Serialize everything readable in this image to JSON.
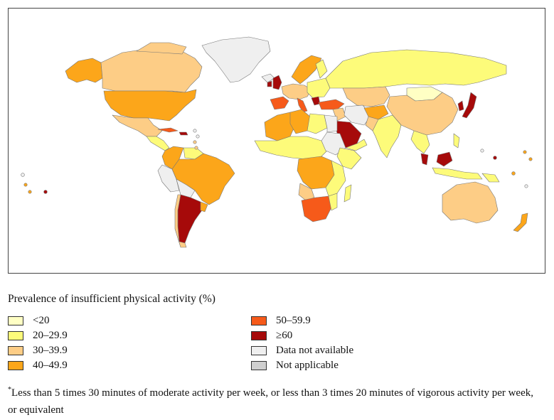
{
  "legend": {
    "title": "Prevalence of insufficient physical activity (%)",
    "categories": [
      {
        "label": "<20",
        "color": "#ffffc4"
      },
      {
        "label": "20–29.9",
        "color": "#fdfb7a"
      },
      {
        "label": "30–39.9",
        "color": "#fdcd86"
      },
      {
        "label": "40–49.9",
        "color": "#fca61a"
      },
      {
        "label": "50–59.9",
        "color": "#f65a1a"
      },
      {
        "label": "≥60",
        "color": "#a60a0a"
      },
      {
        "label": "Data not available",
        "color": "#efefef"
      },
      {
        "label": "Not applicable",
        "color": "#cfcfcf"
      }
    ]
  },
  "footnote": {
    "marker": "*",
    "text": "Less than 5 times 30 minutes of moderate activity per week, or less than 3 times 20 minutes of vigorous activity per week, or equivalent"
  }
}
